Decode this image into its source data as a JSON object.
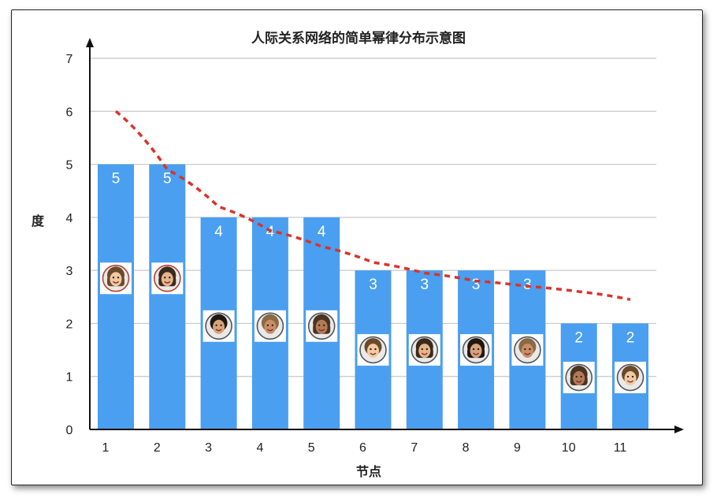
{
  "chart_data": {
    "type": "bar",
    "title": "人际关系网络的简单幂律分布示意图",
    "xlabel": "节点",
    "ylabel": "度",
    "categories": [
      "1",
      "2",
      "3",
      "4",
      "5",
      "6",
      "7",
      "8",
      "9",
      "10",
      "11"
    ],
    "values": [
      5,
      5,
      4,
      4,
      4,
      3,
      3,
      3,
      3,
      2,
      2
    ],
    "data_labels": [
      "5",
      "5",
      "4",
      "4",
      "4",
      "3",
      "3",
      "3",
      "3",
      "2",
      "2"
    ],
    "ylim": [
      0,
      7
    ],
    "yticks": [
      "0",
      "1",
      "2",
      "3",
      "4",
      "5",
      "6",
      "7"
    ],
    "grid": true,
    "trend_curve": {
      "style": "dashed",
      "color": "#d9342b",
      "points": [
        [
          1,
          6.0
        ],
        [
          2,
          4.9
        ],
        [
          3,
          4.2
        ],
        [
          4,
          3.75
        ],
        [
          5,
          3.45
        ],
        [
          6,
          3.15
        ],
        [
          7,
          2.95
        ],
        [
          8,
          2.8
        ],
        [
          9,
          2.7
        ],
        [
          10,
          2.6
        ],
        [
          11,
          2.45
        ]
      ]
    },
    "avatars": [
      {
        "node": "1",
        "level": 2.85,
        "icon": "female-avatar-icon"
      },
      {
        "node": "2",
        "level": 2.85,
        "icon": "female-avatar-icon"
      },
      {
        "node": "3",
        "level": 1.95,
        "icon": "male-avatar-icon"
      },
      {
        "node": "4",
        "level": 1.95,
        "icon": "male-avatar-icon"
      },
      {
        "node": "5",
        "level": 1.95,
        "icon": "female-avatar-icon"
      },
      {
        "node": "6",
        "level": 1.5,
        "icon": "male-avatar-icon"
      },
      {
        "node": "7",
        "level": 1.5,
        "icon": "female-avatar-icon"
      },
      {
        "node": "8",
        "level": 1.5,
        "icon": "female-avatar-icon"
      },
      {
        "node": "9",
        "level": 1.5,
        "icon": "male-avatar-icon"
      },
      {
        "node": "10",
        "level": 0.98,
        "icon": "female-avatar-icon"
      },
      {
        "node": "11",
        "level": 0.98,
        "icon": "male-avatar-icon"
      }
    ],
    "colors": {
      "bar": "#4a9ff0",
      "grid": "#c8c8c8",
      "axis": "#111111",
      "curve": "#d9342b"
    }
  }
}
